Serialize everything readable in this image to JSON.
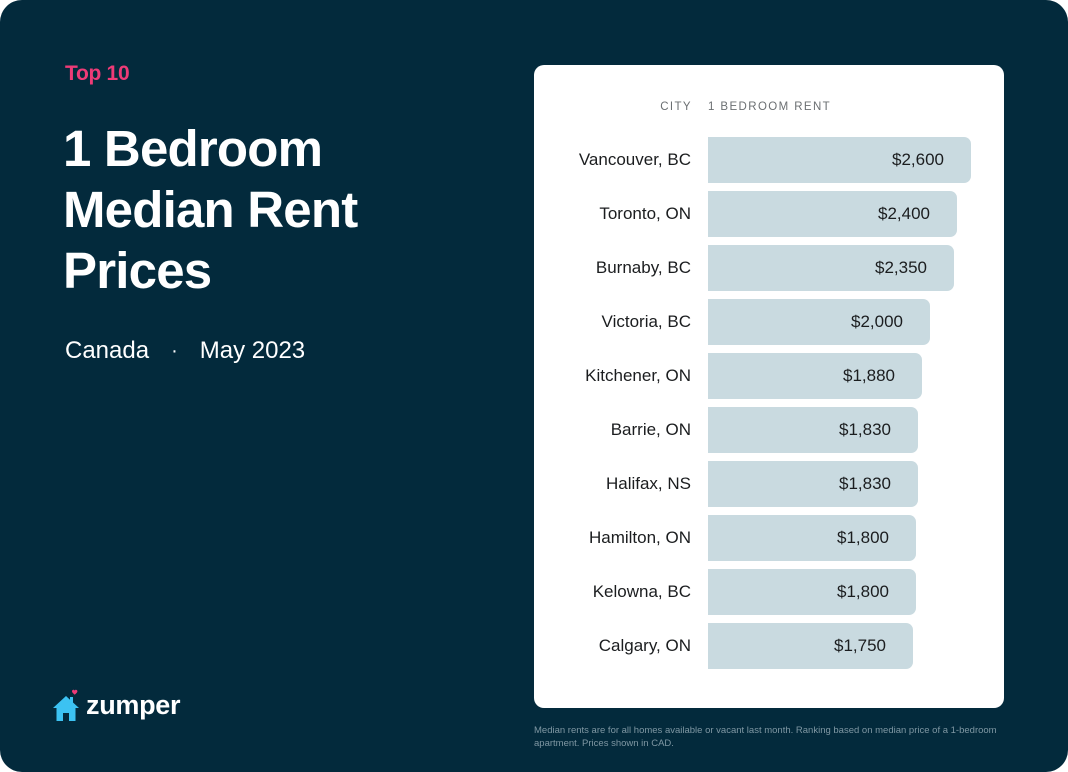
{
  "header": {
    "eyebrow": "Top 10",
    "title_lines": [
      "1 Bedroom",
      "Median Rent",
      "Prices"
    ],
    "region": "Canada",
    "separator": "·",
    "period": "May 2023"
  },
  "logo": {
    "icon": "house-heart-icon",
    "text": "zumper"
  },
  "table": {
    "col_city": "CITY",
    "col_rent": "1 BEDROOM RENT"
  },
  "footnote": "Median rents are for all homes available or vacant last month. Ranking based on median price of a 1-bedroom apartment. Prices shown in CAD.",
  "colors": {
    "background": "#032a3c",
    "accent": "#ee3b77",
    "bar": "#c9dae0",
    "logo_house": "#3cc2f2",
    "card": "#ffffff"
  },
  "chart_data": {
    "type": "bar",
    "orientation": "horizontal",
    "title": "1 Bedroom Median Rent Prices",
    "subtitle": "Canada · May 2023",
    "xlabel": "1 BEDROOM RENT",
    "ylabel": "CITY",
    "categories": [
      "Vancouver, BC",
      "Toronto, ON",
      "Burnaby, BC",
      "Victoria, BC",
      "Kitchener, ON",
      "Barrie, ON",
      "Halifax, NS",
      "Hamilton, ON",
      "Kelowna, BC",
      "Calgary, ON"
    ],
    "values": [
      2600,
      2400,
      2350,
      2000,
      1880,
      1830,
      1830,
      1800,
      1800,
      1750
    ],
    "labels": [
      "$2,600",
      "$2,400",
      "$2,350",
      "$2,000",
      "$1,880",
      "$1,830",
      "$1,830",
      "$1,800",
      "$1,800",
      "$1,750"
    ],
    "units": "CAD",
    "grid": false,
    "legend": null
  }
}
